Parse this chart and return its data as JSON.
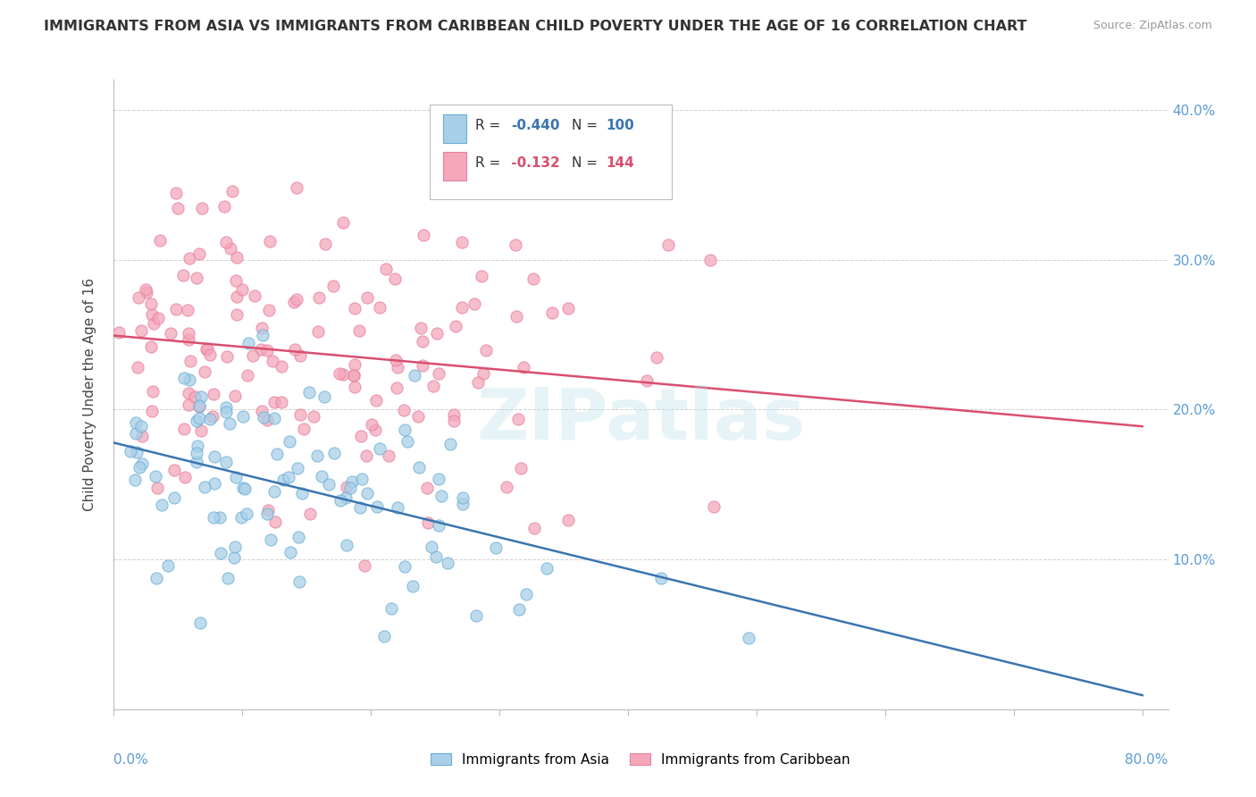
{
  "title": "IMMIGRANTS FROM ASIA VS IMMIGRANTS FROM CARIBBEAN CHILD POVERTY UNDER THE AGE OF 16 CORRELATION CHART",
  "source": "Source: ZipAtlas.com",
  "ylabel": "Child Poverty Under the Age of 16",
  "ylim": [
    0.0,
    0.42
  ],
  "xlim": [
    0.0,
    0.82
  ],
  "yticks": [
    0.0,
    0.1,
    0.2,
    0.3,
    0.4
  ],
  "ytick_labels": [
    "",
    "10.0%",
    "20.0%",
    "30.0%",
    "40.0%"
  ],
  "legend_r_asia": "-0.440",
  "legend_n_asia": "100",
  "legend_r_carib": "-0.132",
  "legend_n_carib": "144",
  "color_asia": "#a8cfe8",
  "color_carib": "#f4a7b9",
  "edge_asia": "#6baed6",
  "edge_carib": "#e87fa0",
  "line_color_asia": "#3a75b0",
  "line_color_carib": "#d94f6e",
  "background_color": "#ffffff",
  "watermark": "ZIPatlas",
  "asia_intercept": 0.178,
  "asia_slope": -0.185,
  "carib_intercept": 0.248,
  "carib_slope": -0.055,
  "asia_noise": 0.038,
  "carib_noise": 0.052
}
